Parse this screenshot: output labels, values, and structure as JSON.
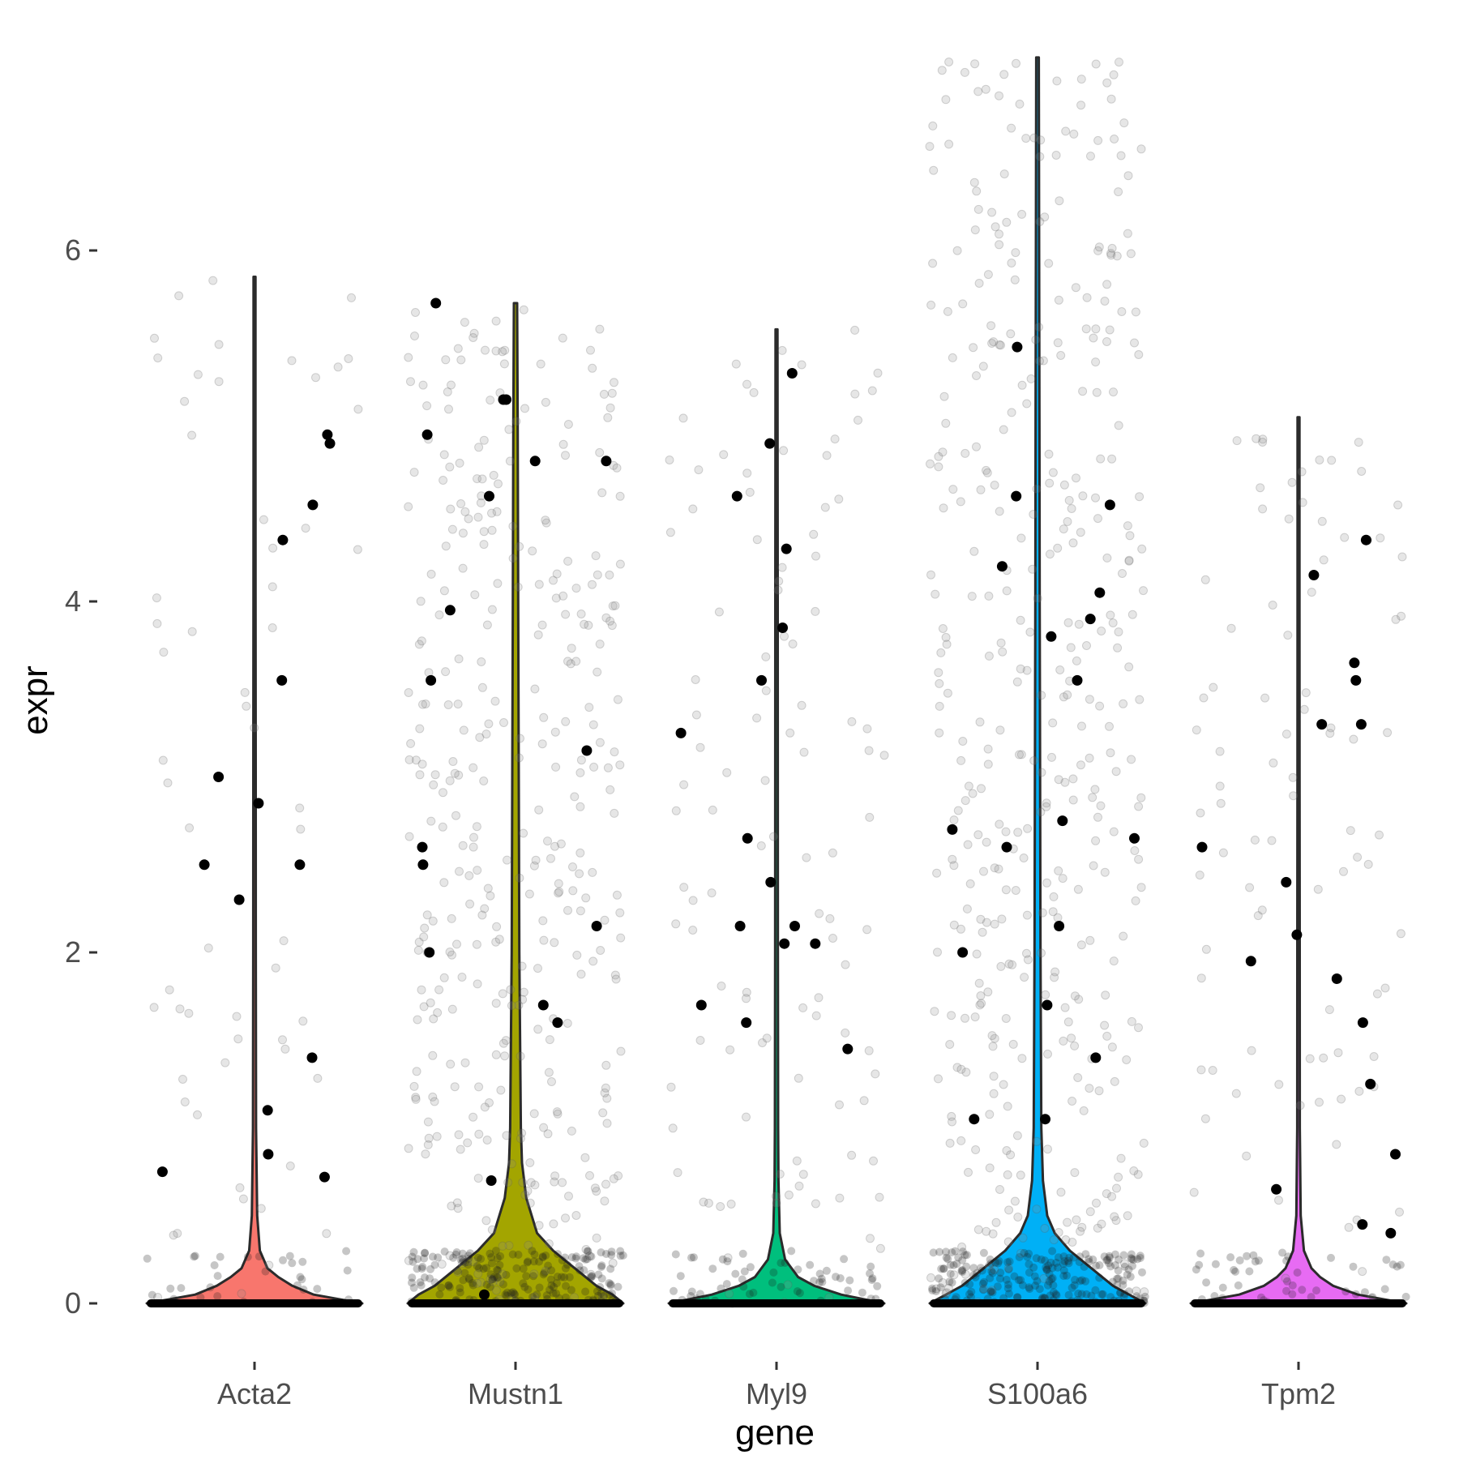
{
  "chart_data": {
    "type": "violin",
    "title": "",
    "xlabel": "gene",
    "ylabel": "expr",
    "ylim": [
      0,
      7
    ],
    "y_ticks": [
      "0",
      "2",
      "4",
      "6"
    ],
    "y_tick_values": [
      0,
      2,
      4,
      6
    ],
    "grid": false,
    "legend": "none",
    "categories": [
      "Acta2",
      "Mustn1",
      "Myl9",
      "S100a6",
      "Tpm2"
    ],
    "series": [
      {
        "color": "#F8766D",
        "max": 5.85,
        "zero_fraction": "high",
        "highlighted_points": [
          4.95,
          4.35,
          2.3,
          2.85,
          0.85,
          2.5,
          1.1,
          3.55,
          4.55,
          3.0,
          2.5,
          0.75,
          0.72,
          1.4,
          4.9
        ],
        "background_point_count": 60,
        "density": [
          [
            0,
            1.0
          ],
          [
            0.05,
            0.55
          ],
          [
            0.1,
            0.35
          ],
          [
            0.15,
            0.22
          ],
          [
            0.2,
            0.12
          ],
          [
            0.3,
            0.05
          ],
          [
            0.5,
            0.025
          ],
          [
            1.0,
            0.014
          ],
          [
            2.0,
            0.012
          ],
          [
            3.0,
            0.011
          ],
          [
            4.0,
            0.01
          ],
          [
            5.0,
            0.009
          ],
          [
            5.85,
            0.008
          ]
        ]
      },
      {
        "color": "#A3A500",
        "max": 5.7,
        "zero_fraction": "moderate",
        "highlighted_points": [
          5.7,
          5.15,
          5.15,
          4.8,
          4.8,
          4.95,
          4.6,
          3.95,
          3.55,
          3.15,
          2.6,
          2.5,
          2.15,
          2.0,
          1.7,
          1.6,
          0.7,
          0.05
        ],
        "background_point_count": 380,
        "density": [
          [
            0,
            1.0
          ],
          [
            0.05,
            0.9
          ],
          [
            0.1,
            0.75
          ],
          [
            0.2,
            0.55
          ],
          [
            0.3,
            0.35
          ],
          [
            0.4,
            0.2
          ],
          [
            0.6,
            0.1
          ],
          [
            0.8,
            0.06
          ],
          [
            1.0,
            0.05
          ],
          [
            2.0,
            0.035
          ],
          [
            3.0,
            0.03
          ],
          [
            4.0,
            0.025
          ],
          [
            5.0,
            0.02
          ],
          [
            5.7,
            0.015
          ]
        ]
      },
      {
        "color": "#00BF7D",
        "max": 5.55,
        "zero_fraction": "high",
        "highlighted_points": [
          4.3,
          2.05,
          1.6,
          3.85,
          5.3,
          3.25,
          2.15,
          1.7,
          1.45,
          2.05,
          2.15,
          2.4,
          2.65,
          4.6,
          4.9,
          3.55
        ],
        "background_point_count": 110,
        "density": [
          [
            0,
            1.0
          ],
          [
            0.05,
            0.6
          ],
          [
            0.1,
            0.35
          ],
          [
            0.15,
            0.2
          ],
          [
            0.25,
            0.08
          ],
          [
            0.4,
            0.03
          ],
          [
            0.7,
            0.018
          ],
          [
            1.0,
            0.015
          ],
          [
            2.0,
            0.013
          ],
          [
            3.0,
            0.012
          ],
          [
            4.0,
            0.011
          ],
          [
            5.0,
            0.01
          ],
          [
            5.55,
            0.009
          ]
        ]
      },
      {
        "color": "#00B0F6",
        "max": 7.1,
        "zero_fraction": "moderate",
        "highlighted_points": [
          2.75,
          1.05,
          2.0,
          1.05,
          2.6,
          2.65,
          4.55,
          4.2,
          3.9,
          2.7,
          4.6,
          3.55,
          1.7,
          1.4,
          2.15,
          4.05,
          3.8,
          5.45
        ],
        "background_point_count": 420,
        "density": [
          [
            0,
            1.0
          ],
          [
            0.05,
            0.85
          ],
          [
            0.1,
            0.7
          ],
          [
            0.2,
            0.5
          ],
          [
            0.3,
            0.3
          ],
          [
            0.4,
            0.16
          ],
          [
            0.5,
            0.09
          ],
          [
            0.7,
            0.05
          ],
          [
            1.0,
            0.035
          ],
          [
            2.0,
            0.028
          ],
          [
            3.0,
            0.024
          ],
          [
            4.0,
            0.02
          ],
          [
            5.0,
            0.018
          ],
          [
            6.0,
            0.015
          ],
          [
            7.1,
            0.012
          ]
        ]
      },
      {
        "color": "#E76BF3",
        "max": 5.05,
        "zero_fraction": "high",
        "highlighted_points": [
          0.65,
          0.85,
          1.85,
          1.95,
          0.4,
          3.55,
          4.15,
          2.6,
          3.65,
          4.35,
          2.4,
          2.1,
          0.45,
          1.25,
          1.6,
          3.3,
          3.3
        ],
        "background_point_count": 90,
        "density": [
          [
            0,
            1.0
          ],
          [
            0.05,
            0.55
          ],
          [
            0.1,
            0.32
          ],
          [
            0.15,
            0.2
          ],
          [
            0.2,
            0.12
          ],
          [
            0.3,
            0.05
          ],
          [
            0.5,
            0.02
          ],
          [
            1.0,
            0.012
          ],
          [
            2.0,
            0.011
          ],
          [
            3.0,
            0.01
          ],
          [
            4.0,
            0.009
          ],
          [
            5.05,
            0.008
          ]
        ]
      }
    ]
  }
}
